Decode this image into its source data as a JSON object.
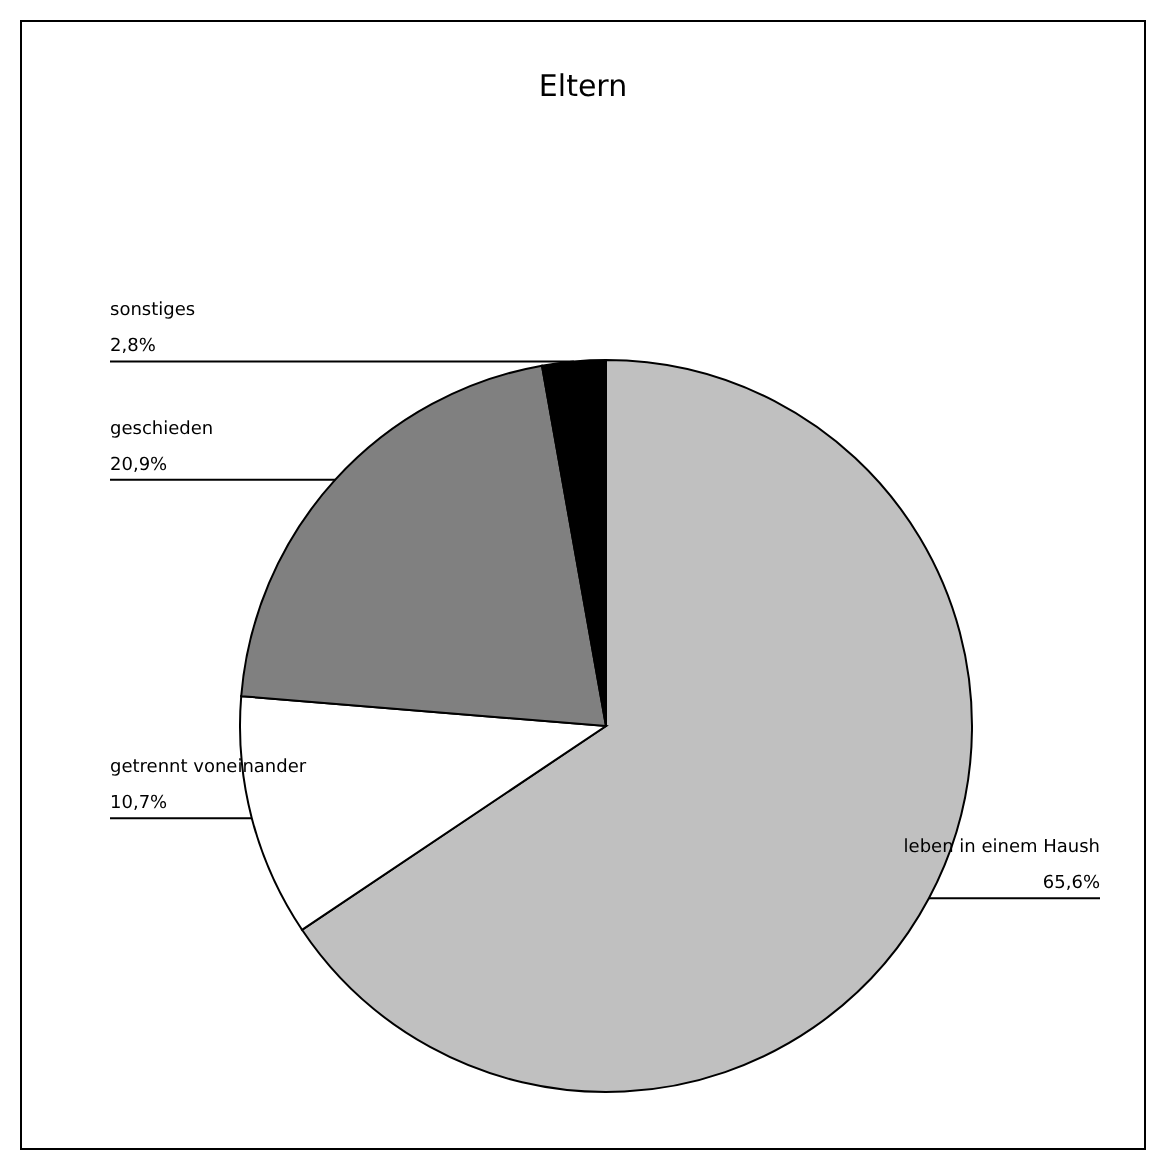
{
  "chart_data": {
    "type": "pie",
    "title": "Eltern",
    "categories": [
      "leben in einem Haush",
      "getrennt voneinander",
      "geschieden",
      "sonstiges"
    ],
    "values": [
      65.6,
      10.7,
      20.9,
      2.8
    ],
    "colors": [
      "#c0c0c0",
      "#ffffff",
      "#808080",
      "#000000"
    ],
    "value_labels": [
      "65,6%",
      "10,7%",
      "20,9%",
      "2,8%"
    ]
  }
}
